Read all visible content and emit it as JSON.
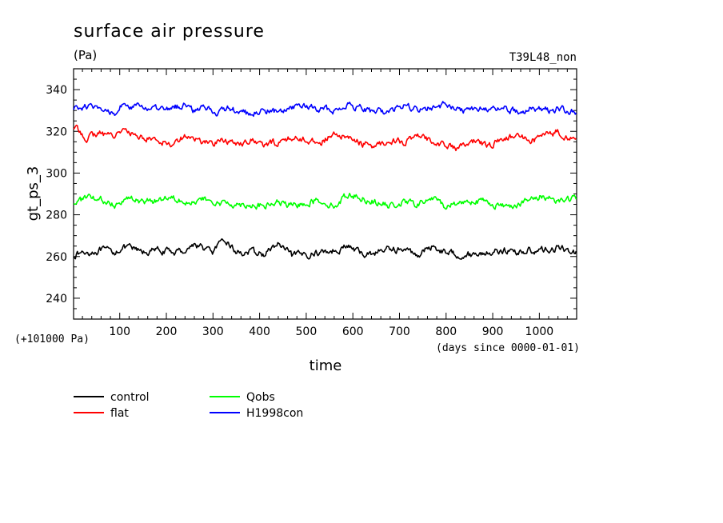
{
  "header": {
    "title": "surface air pressure",
    "units": "(Pa)",
    "run_id": "T39L48_non"
  },
  "chart_data": {
    "type": "line",
    "title": "surface air pressure",
    "ylabel": "gt_ps_3",
    "xlabel": "time",
    "y_offset_note": "(+101000 Pa)",
    "x_unit_note": "(days since 0000-01-01)",
    "xlim": [
      1,
      1080
    ],
    "ylim": [
      230,
      350
    ],
    "x_ticks": [
      100,
      200,
      300,
      400,
      500,
      600,
      700,
      800,
      900,
      1000
    ],
    "y_ticks": [
      240,
      260,
      280,
      300,
      320,
      340
    ],
    "grid": false,
    "legend_position": "bottom-left",
    "series": [
      {
        "name": "control",
        "color": "#000000",
        "x": [
          1,
          30,
          60,
          90,
          100,
          120,
          150,
          180,
          210,
          240,
          260,
          280,
          300,
          310,
          330,
          350,
          380,
          410,
          440,
          470,
          500,
          530,
          560,
          590,
          620,
          650,
          680,
          710,
          740,
          770,
          800,
          830,
          860,
          890,
          920,
          950,
          980,
          1010,
          1040,
          1080
        ],
        "values": [
          261,
          262,
          263,
          262,
          264,
          264,
          262,
          263,
          262,
          263,
          266,
          264,
          262,
          265,
          267,
          262,
          262,
          261,
          266,
          260,
          261,
          262,
          263,
          265,
          261,
          262,
          264,
          263,
          261,
          265,
          262,
          261,
          261,
          262,
          263,
          262,
          263,
          263,
          264,
          262
        ]
      },
      {
        "name": "flat",
        "color": "#ff0000",
        "x": [
          1,
          30,
          60,
          90,
          100,
          120,
          150,
          180,
          210,
          240,
          260,
          280,
          300,
          310,
          330,
          350,
          380,
          410,
          440,
          470,
          500,
          530,
          560,
          590,
          620,
          650,
          680,
          710,
          740,
          770,
          800,
          830,
          860,
          890,
          920,
          950,
          980,
          1010,
          1040,
          1080
        ],
        "values": [
          322,
          317,
          319,
          318,
          321,
          319,
          317,
          316,
          314,
          318,
          316,
          315,
          314,
          316,
          315,
          314,
          316,
          313,
          315,
          317,
          316,
          315,
          318,
          317,
          314,
          313,
          316,
          315,
          317,
          316,
          313,
          312,
          315,
          313,
          316,
          318,
          315,
          318,
          320,
          315
        ]
      },
      {
        "name": "Qobs",
        "color": "#00ff00",
        "x": [
          1,
          30,
          60,
          90,
          100,
          120,
          150,
          180,
          210,
          240,
          260,
          280,
          300,
          310,
          330,
          350,
          380,
          410,
          440,
          470,
          500,
          530,
          560,
          590,
          620,
          650,
          680,
          710,
          740,
          770,
          800,
          830,
          860,
          890,
          920,
          950,
          980,
          1010,
          1040,
          1080
        ],
        "values": [
          286,
          288,
          287,
          285,
          287,
          288,
          286,
          287,
          289,
          287,
          286,
          287,
          286,
          285,
          286,
          285,
          285,
          284,
          286,
          284,
          286,
          287,
          284,
          290,
          288,
          286,
          284,
          286,
          285,
          288,
          284,
          286,
          287,
          286,
          284,
          285,
          287,
          289,
          287,
          288
        ]
      },
      {
        "name": "H1998con",
        "color": "#0000ff",
        "x": [
          1,
          30,
          60,
          90,
          100,
          120,
          150,
          180,
          210,
          240,
          260,
          280,
          300,
          310,
          330,
          350,
          380,
          410,
          440,
          470,
          500,
          530,
          560,
          590,
          620,
          650,
          680,
          710,
          740,
          770,
          800,
          830,
          860,
          890,
          920,
          950,
          980,
          1010,
          1040,
          1080
        ],
        "values": [
          331,
          332,
          330,
          329,
          333,
          331,
          332,
          330,
          331,
          333,
          330,
          332,
          330,
          329,
          331,
          330,
          328,
          330,
          329,
          331,
          332,
          331,
          330,
          333,
          331,
          329,
          330,
          332,
          330,
          331,
          333,
          330,
          331,
          330,
          332,
          329,
          331,
          330,
          331,
          329
        ]
      }
    ]
  }
}
